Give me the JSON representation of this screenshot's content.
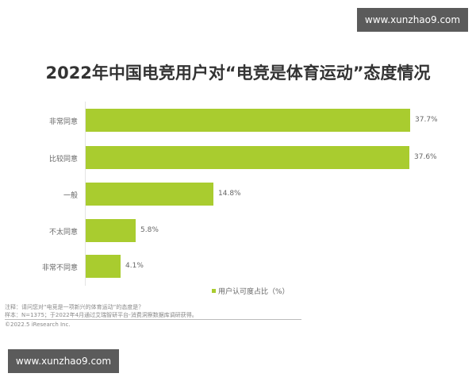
{
  "watermarks": {
    "top": "www.xunzhao9.com",
    "bottom": "www.xunzhao9.com"
  },
  "chart_data": {
    "type": "bar",
    "orientation": "horizontal",
    "title": "2022年中国电竞用户对“电竞是体育运动”态度情况",
    "categories": [
      "非常同意",
      "比较同意",
      "一般",
      "不太同意",
      "非常不同意"
    ],
    "series": [
      {
        "name": "用户认可度占比（%）",
        "values": [
          37.7,
          37.6,
          14.8,
          5.8,
          4.1
        ],
        "color": "#a9cc2f"
      }
    ],
    "value_labels": [
      "37.7%",
      "37.6%",
      "14.8%",
      "5.8%",
      "4.1%"
    ],
    "xlabel": "",
    "ylabel": "",
    "xlim": [
      0,
      40
    ],
    "grid": false,
    "legend_position": "bottom-right",
    "legend": [
      "用户认可度占比（%）"
    ]
  },
  "footnotes": {
    "note": "注释：请问您对“电竞是一项新兴的体育运动”的态度是？",
    "sample": "样本：N=1375；于2022年4月通过艾瑞智研平台-消费洞察数据库调研获得。",
    "copyright": "©2022.5 iResearch Inc."
  }
}
